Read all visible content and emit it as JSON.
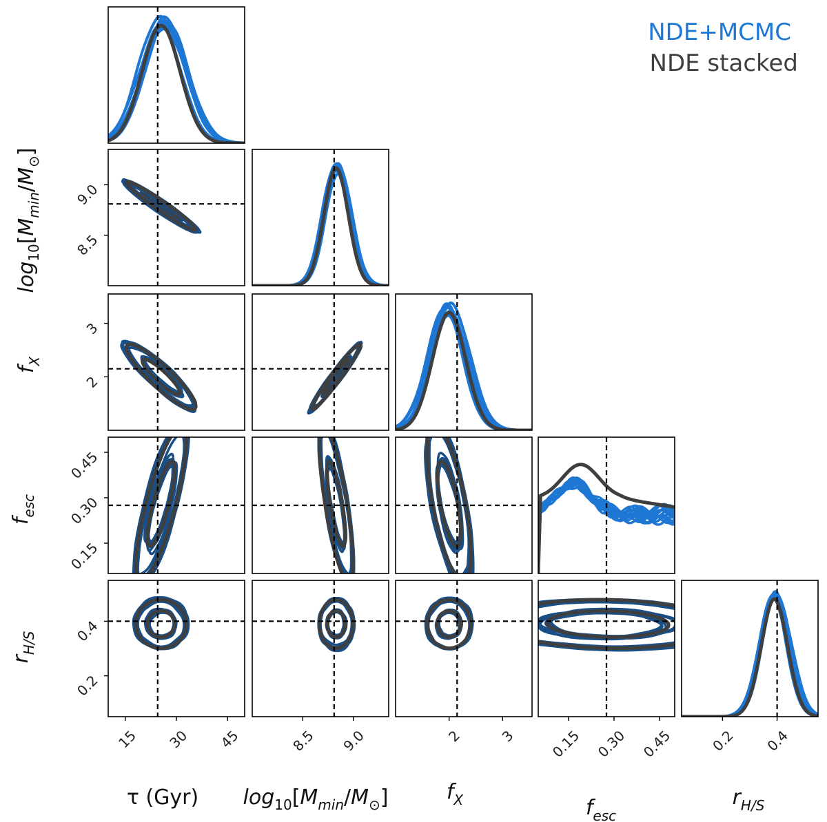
{
  "chart_data": {
    "type": "corner",
    "legend": {
      "placement": "top-right",
      "entries": [
        {
          "label": "NDE+MCMC",
          "color": "#1f77d4"
        },
        {
          "label": "NDE stacked",
          "color": "#3f3f3f"
        }
      ]
    },
    "colors": {
      "mcmc_fill": "#1f77d4",
      "contour": "#1a4f86",
      "stacked": "#3f3f3f",
      "truth": "#000000"
    },
    "parameters": [
      {
        "key": "tau",
        "label": "τ (Gyr)",
        "range": [
          10,
          50
        ],
        "ticks": [
          15,
          30,
          45
        ],
        "tick_labels": [
          "15",
          "30",
          "45"
        ],
        "truth": 24.5
      },
      {
        "key": "logM",
        "label": "log10[Mmin/M⊙]",
        "range": [
          8.0,
          9.35
        ],
        "ticks": [
          8.5,
          9.0
        ],
        "tick_labels": [
          "8.5",
          "9.0"
        ],
        "truth": 8.81
      },
      {
        "key": "fX",
        "label": "fX",
        "range": [
          1.0,
          3.55
        ],
        "ticks": [
          2,
          3
        ],
        "tick_labels": [
          "2",
          "3"
        ],
        "truth": 2.15
      },
      {
        "key": "fesc",
        "label": "fesc",
        "range": [
          0.05,
          0.5
        ],
        "ticks": [
          0.15,
          0.3,
          0.45
        ],
        "tick_labels": [
          "0.15",
          "0.30",
          "0.45"
        ],
        "truth": 0.275
      },
      {
        "key": "rHS",
        "label": "rH/S",
        "range": [
          0.05,
          0.55
        ],
        "ticks": [
          0.2,
          0.4
        ],
        "tick_labels": [
          "0.2",
          "0.4"
        ],
        "truth": 0.4
      }
    ],
    "marginals": {
      "tau": {
        "mcmc_peak": 26,
        "mcmc_width": 6.2,
        "stacked_peak": 25.5,
        "stacked_width": 5.6
      },
      "logM": {
        "mcmc_peak": 8.84,
        "mcmc_width": 0.13,
        "stacked_peak": 8.83,
        "stacked_width": 0.12
      },
      "fX": {
        "mcmc_peak": 2.0,
        "mcmc_width": 0.33,
        "stacked_peak": 2.0,
        "stacked_width": 0.31
      },
      "fesc": {
        "stacked_peak": 0.19,
        "stacked_low_end": 0.64,
        "stacked_high_end": 0.43
      },
      "rHS": {
        "mcmc_peak": 0.39,
        "mcmc_width": 0.05,
        "stacked_peak": 0.39,
        "stacked_width": 0.048
      }
    },
    "contours": [
      {
        "x": "tau",
        "y": "logM",
        "center": [
          25.5,
          8.79
        ],
        "sx": 5.5,
        "sy": 0.13,
        "rho": -0.97
      },
      {
        "x": "tau",
        "y": "fX",
        "center": [
          25.5,
          2.0
        ],
        "sx": 5.5,
        "sy": 0.33,
        "rho": -0.9
      },
      {
        "x": "logM",
        "y": "fX",
        "center": [
          8.83,
          2.0
        ],
        "sx": 0.13,
        "sy": 0.33,
        "rho": 0.97
      },
      {
        "x": "tau",
        "y": "fesc",
        "center": [
          25.5,
          0.28
        ],
        "sx": 4.0,
        "sy": 0.14,
        "rho": 0.8
      },
      {
        "x": "logM",
        "y": "fesc",
        "center": [
          8.83,
          0.28
        ],
        "sx": 0.09,
        "sy": 0.14,
        "rho": -0.75
      },
      {
        "x": "fX",
        "y": "fesc",
        "center": [
          2.0,
          0.28
        ],
        "sx": 0.22,
        "sy": 0.14,
        "rho": -0.65
      },
      {
        "x": "tau",
        "y": "rHS",
        "center": [
          25.5,
          0.39
        ],
        "sx": 4.0,
        "sy": 0.048,
        "rho": 0.0
      },
      {
        "x": "logM",
        "y": "rHS",
        "center": [
          8.83,
          0.39
        ],
        "sx": 0.09,
        "sy": 0.048,
        "rho": 0.0
      },
      {
        "x": "fX",
        "y": "rHS",
        "center": [
          2.0,
          0.39
        ],
        "sx": 0.22,
        "sy": 0.048,
        "rho": 0.0
      },
      {
        "x": "fesc",
        "y": "rHS",
        "center": [
          0.28,
          0.39
        ],
        "sx": 0.2,
        "sy": 0.048,
        "rho": -0.08
      }
    ]
  }
}
